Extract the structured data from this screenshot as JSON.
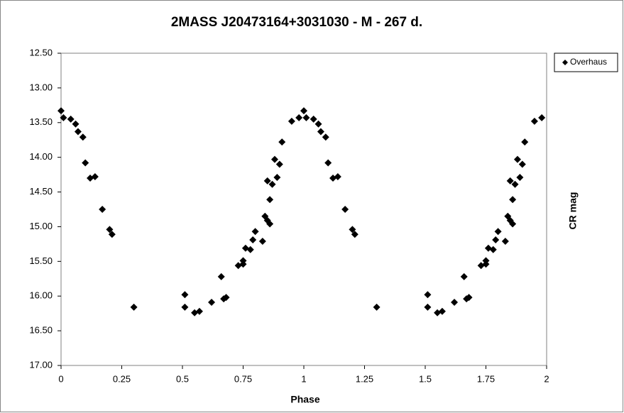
{
  "chart_data": {
    "type": "scatter",
    "title": "2MASS J20473164+3031030  - M - 267 d.",
    "x_label": "Phase",
    "y_label": "CR mag",
    "legend_position": "right",
    "grid": false,
    "y_inverted": true,
    "xlim": [
      0,
      2
    ],
    "xticks": [
      0,
      0.25,
      0.5,
      0.75,
      1,
      1.25,
      1.5,
      1.75,
      2
    ],
    "ylim": [
      12.5,
      17
    ],
    "yticks": [
      {
        "value": 12.5,
        "label": "12.50"
      },
      {
        "value": 13,
        "label": "13.00"
      },
      {
        "value": 13.5,
        "label": "13.50"
      },
      {
        "value": 14,
        "label": "14.00"
      },
      {
        "value": 14.5,
        "label": "14.50"
      },
      {
        "value": 15,
        "label": "15.00"
      },
      {
        "value": 15.5,
        "label": "15.50"
      },
      {
        "value": 16,
        "label": "16.00"
      },
      {
        "value": 16.5,
        "label": "16.50"
      },
      {
        "value": 17,
        "label": "17.00"
      }
    ],
    "series": [
      {
        "name": "Overhaus",
        "color": "#000000",
        "x": [
          0,
          0.01,
          0.04,
          0.06,
          0.07,
          0.09,
          0.1,
          0.12,
          0.14,
          0.17,
          0.2,
          0.21,
          0.3,
          0.51,
          0.51,
          0.55,
          0.57,
          0.62,
          0.66,
          0.67,
          0.68,
          0.73,
          0.75,
          0.75,
          0.76,
          0.78,
          0.79,
          0.8,
          0.83,
          0.84,
          0.85,
          0.86,
          0.86,
          0.85,
          0.87,
          0.88,
          0.89,
          0.9,
          0.91,
          0.95,
          0.98,
          1,
          1.01,
          1.04,
          1.06,
          1.07,
          1.09,
          1.1,
          1.12,
          1.14,
          1.17,
          1.2,
          1.21,
          1.3,
          1.51,
          1.51,
          1.55,
          1.57,
          1.62,
          1.66,
          1.67,
          1.68,
          1.73,
          1.75,
          1.75,
          1.76,
          1.78,
          1.79,
          1.8,
          1.83,
          1.84,
          1.85,
          1.86,
          1.86,
          1.85,
          1.87,
          1.88,
          1.89,
          1.9,
          1.91,
          1.95,
          1.98
        ],
        "values": [
          13.33,
          13.43,
          13.45,
          13.52,
          13.63,
          13.71,
          14.08,
          14.3,
          14.28,
          14.75,
          15.04,
          15.11,
          16.16,
          15.98,
          16.16,
          16.24,
          16.22,
          16.09,
          15.72,
          16.04,
          16.02,
          15.56,
          15.54,
          15.49,
          15.31,
          15.33,
          15.19,
          15.07,
          15.21,
          14.85,
          14.91,
          14.96,
          14.61,
          14.34,
          14.39,
          14.03,
          14.29,
          14.1,
          13.78,
          13.48,
          13.43,
          13.33,
          13.43,
          13.45,
          13.52,
          13.63,
          13.71,
          14.08,
          14.3,
          14.28,
          14.75,
          15.04,
          15.11,
          16.16,
          15.98,
          16.16,
          16.24,
          16.22,
          16.09,
          15.72,
          16.04,
          16.02,
          15.56,
          15.54,
          15.49,
          15.31,
          15.33,
          15.19,
          15.07,
          15.21,
          14.85,
          14.91,
          14.96,
          14.61,
          14.34,
          14.39,
          14.03,
          14.29,
          14.1,
          13.78,
          13.48,
          13.43
        ]
      }
    ]
  }
}
